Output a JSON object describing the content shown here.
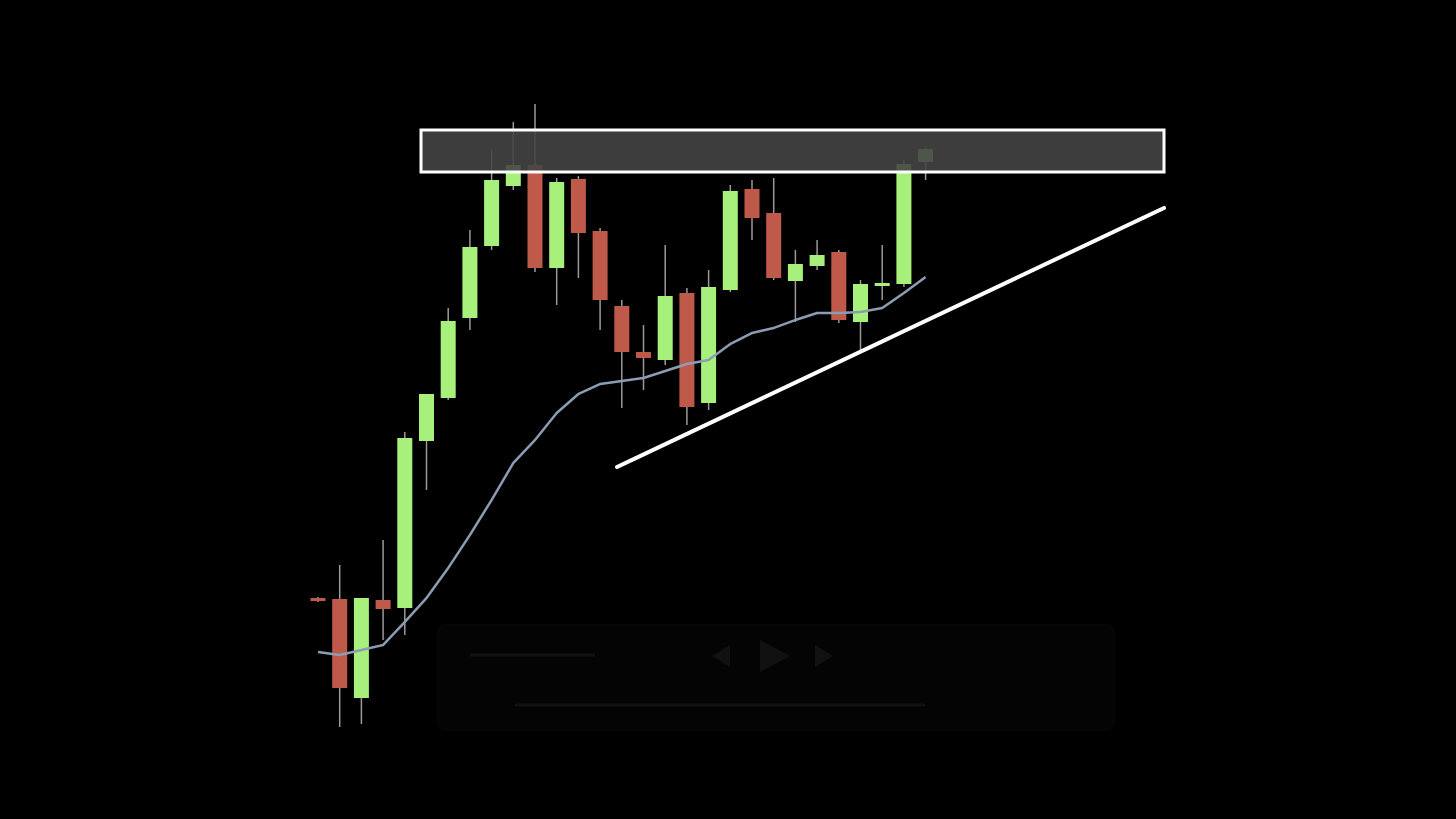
{
  "chart_data": {
    "type": "candlestick",
    "ylim": [
      0,
      819
    ],
    "up_color": "#a8f07c",
    "down_color": "#bf5a4a",
    "open": [
      221,
      220,
      121,
      219,
      211,
      378,
      421,
      501,
      573,
      633,
      654,
      551,
      640,
      588,
      513,
      467,
      459,
      526,
      416,
      529,
      630,
      606,
      538,
      553,
      567,
      497,
      533,
      535,
      657
    ],
    "high": [
      222,
      254,
      221,
      279,
      387,
      425,
      511,
      589,
      669,
      697,
      715,
      641,
      643,
      591,
      519,
      494,
      574,
      531,
      549,
      634,
      639,
      641,
      569,
      579,
      569,
      539,
      574,
      659,
      671
    ],
    "low": [
      217,
      92,
      95,
      179,
      184,
      329,
      419,
      489,
      569,
      629,
      547,
      514,
      541,
      489,
      411,
      429,
      454,
      394,
      409,
      527,
      579,
      539,
      497,
      549,
      496,
      469,
      519,
      532,
      639
    ],
    "close": [
      218,
      131,
      221,
      210,
      381,
      425,
      498,
      572,
      639,
      654,
      551,
      637,
      586,
      519,
      467,
      461,
      523,
      412,
      532,
      628,
      601,
      541,
      555,
      564,
      499,
      535,
      536,
      655,
      670
    ],
    "moving_average": {
      "color": "#8c9db3",
      "values": [
        167,
        164,
        169,
        174,
        197,
        221,
        251,
        284,
        319,
        356,
        379,
        406,
        425,
        435,
        438,
        441,
        448,
        455,
        459,
        475,
        486,
        491,
        499,
        506,
        506,
        507,
        511,
        526,
        542
      ]
    }
  }
}
